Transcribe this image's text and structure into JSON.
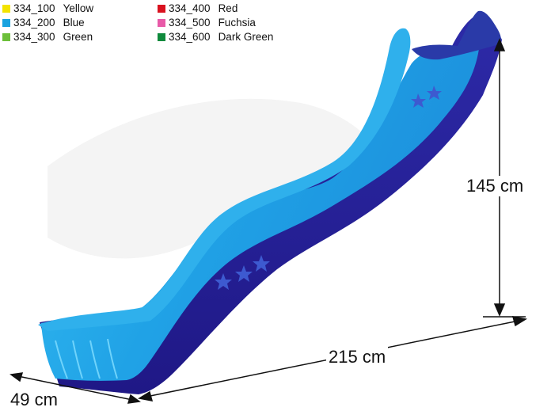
{
  "legend": {
    "items": [
      {
        "code": "334_100",
        "name": "Yellow",
        "color": "#f3e300"
      },
      {
        "code": "334_200",
        "name": "Blue",
        "color": "#1aa3e0"
      },
      {
        "code": "334_300",
        "name": "Green",
        "color": "#6cbf3a"
      },
      {
        "code": "334_400",
        "name": "Red",
        "color": "#d9121f"
      },
      {
        "code": "334_500",
        "name": "Fuchsia",
        "color": "#e85aa8"
      },
      {
        "code": "334_600",
        "name": "Dark Green",
        "color": "#0f8a3c"
      }
    ]
  },
  "dimensions": {
    "height": "145 cm",
    "length": "215 cm",
    "width": "49 cm"
  },
  "colors": {
    "slide_light": "#2eb6ee",
    "slide_mid": "#1583d2",
    "slide_dark": "#241b96"
  }
}
